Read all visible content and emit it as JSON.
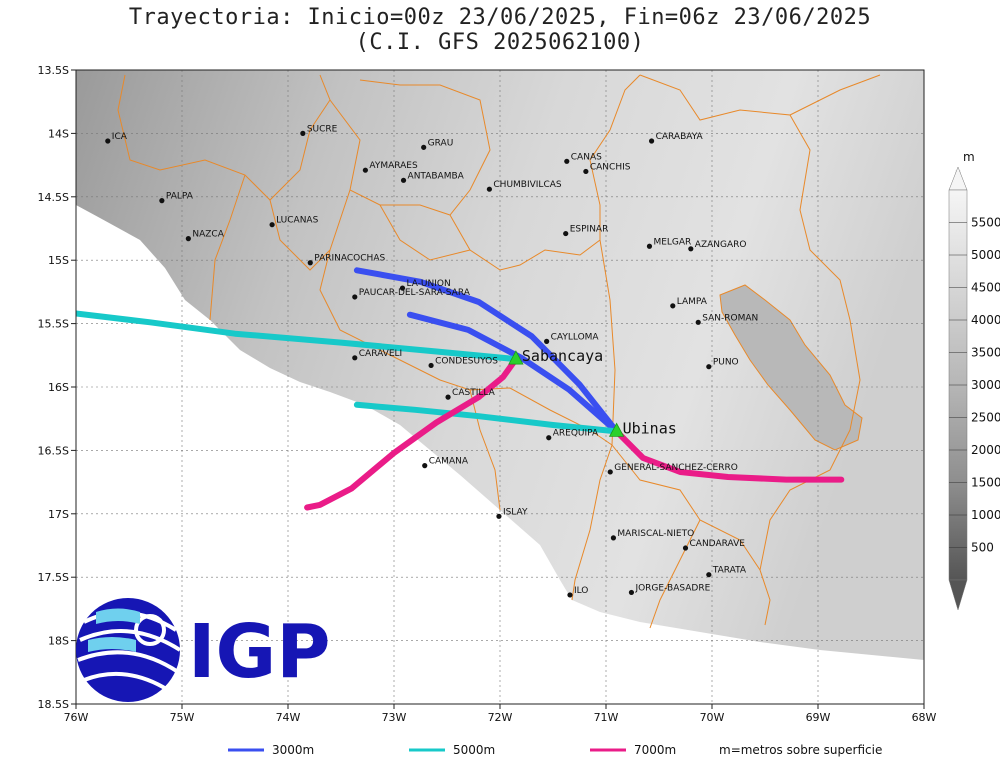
{
  "title": {
    "line1": "Trayectoria: Inicio=00z 23/06/2025, Fin=06z 23/06/2025",
    "line2": "(C.I. GFS 2025062100)"
  },
  "map": {
    "lon_range": [
      -76,
      -68
    ],
    "lat_range": [
      -18.5,
      -13.5
    ],
    "x_ticks": [
      {
        "lon": -76,
        "label": "76W"
      },
      {
        "lon": -75,
        "label": "75W"
      },
      {
        "lon": -74,
        "label": "74W"
      },
      {
        "lon": -73,
        "label": "73W"
      },
      {
        "lon": -72,
        "label": "72W"
      },
      {
        "lon": -71,
        "label": "71W"
      },
      {
        "lon": -70,
        "label": "70W"
      },
      {
        "lon": -69,
        "label": "69W"
      },
      {
        "lon": -68,
        "label": "68W"
      }
    ],
    "y_ticks": [
      {
        "lat": -13.5,
        "label": "13.5S"
      },
      {
        "lat": -14,
        "label": "14S"
      },
      {
        "lat": -14.5,
        "label": "14.5S"
      },
      {
        "lat": -15,
        "label": "15S"
      },
      {
        "lat": -15.5,
        "label": "15.5S"
      },
      {
        "lat": -16,
        "label": "16S"
      },
      {
        "lat": -16.5,
        "label": "16.5S"
      },
      {
        "lat": -17,
        "label": "17S"
      },
      {
        "lat": -17.5,
        "label": "17.5S"
      },
      {
        "lat": -18,
        "label": "18S"
      },
      {
        "lat": -18.5,
        "label": "18.5S"
      }
    ],
    "grid": true,
    "boundary_color": "#e8892a",
    "cities": [
      {
        "name": "ICA",
        "lon": -75.7,
        "lat": -14.06
      },
      {
        "name": "SUCRE",
        "lon": -73.86,
        "lat": -14.0
      },
      {
        "name": "GRAU",
        "lon": -72.72,
        "lat": -14.11
      },
      {
        "name": "CARABAYA",
        "lon": -70.57,
        "lat": -14.06
      },
      {
        "name": "AYMARAES",
        "lon": -73.27,
        "lat": -14.29
      },
      {
        "name": "ANTABAMBA",
        "lon": -72.91,
        "lat": -14.37
      },
      {
        "name": "CANAS",
        "lon": -71.37,
        "lat": -14.22
      },
      {
        "name": "CANCHIS",
        "lon": -71.19,
        "lat": -14.3
      },
      {
        "name": "CHUMBIVILCAS",
        "lon": -72.1,
        "lat": -14.44
      },
      {
        "name": "PALPA",
        "lon": -75.19,
        "lat": -14.53
      },
      {
        "name": "LUCANAS",
        "lon": -74.15,
        "lat": -14.72
      },
      {
        "name": "ESPINAR",
        "lon": -71.38,
        "lat": -14.79
      },
      {
        "name": "NAZCA",
        "lon": -74.94,
        "lat": -14.83
      },
      {
        "name": "MELGAR",
        "lon": -70.59,
        "lat": -14.89
      },
      {
        "name": "AZANGARO",
        "lon": -70.2,
        "lat": -14.91
      },
      {
        "name": "PARINACOCHAS",
        "lon": -73.79,
        "lat": -15.02
      },
      {
        "name": "LA-UNION",
        "lon": -72.92,
        "lat": -15.22
      },
      {
        "name": "PAUCAR-DEL-SARA-SARA",
        "lon": -73.37,
        "lat": -15.29
      },
      {
        "name": "LAMPA",
        "lon": -70.37,
        "lat": -15.36
      },
      {
        "name": "SAN-ROMAN",
        "lon": -70.13,
        "lat": -15.49
      },
      {
        "name": "CAYLLOMA",
        "lon": -71.56,
        "lat": -15.64
      },
      {
        "name": "CARAVELI",
        "lon": -73.37,
        "lat": -15.77
      },
      {
        "name": "CONDESUYOS",
        "lon": -72.65,
        "lat": -15.83
      },
      {
        "name": "PUNO",
        "lon": -70.03,
        "lat": -15.84
      },
      {
        "name": "CASTILLA",
        "lon": -72.49,
        "lat": -16.08
      },
      {
        "name": "AREQUIPA",
        "lon": -71.54,
        "lat": -16.4
      },
      {
        "name": "CAMANA",
        "lon": -72.71,
        "lat": -16.62
      },
      {
        "name": "GENERAL-SANCHEZ-CERRO",
        "lon": -70.96,
        "lat": -16.67
      },
      {
        "name": "ISLAY",
        "lon": -72.01,
        "lat": -17.02
      },
      {
        "name": "MARISCAL-NIETO",
        "lon": -70.93,
        "lat": -17.19
      },
      {
        "name": "CANDARAVE",
        "lon": -70.25,
        "lat": -17.27
      },
      {
        "name": "TARATA",
        "lon": -70.03,
        "lat": -17.48
      },
      {
        "name": "ILO",
        "lon": -71.34,
        "lat": -17.64
      },
      {
        "name": "JORGE-BASADRE",
        "lon": -70.76,
        "lat": -17.62
      }
    ],
    "volcanoes": [
      {
        "name": "Sabancaya",
        "lon": -71.85,
        "lat": -15.78
      },
      {
        "name": "Ubinas",
        "lon": -70.9,
        "lat": -16.35
      }
    ]
  },
  "trajectories": [
    {
      "label": "3000m",
      "color": "#3a4ff0",
      "points": [
        [
          -70.9,
          -16.35
        ],
        [
          -71.25,
          -15.98
        ],
        [
          -71.7,
          -15.6
        ],
        [
          -72.2,
          -15.33
        ],
        [
          -72.75,
          -15.17
        ],
        [
          -73.35,
          -15.08
        ]
      ]
    },
    {
      "label": "3000m",
      "color": "#3a4ff0",
      "points": [
        [
          -70.9,
          -16.35
        ],
        [
          -71.35,
          -16.02
        ],
        [
          -71.8,
          -15.77
        ],
        [
          -72.3,
          -15.55
        ],
        [
          -72.85,
          -15.43
        ]
      ]
    },
    {
      "label": "5000m",
      "color": "#17c9c9",
      "points": [
        [
          -71.85,
          -15.78
        ],
        [
          -72.6,
          -15.72
        ],
        [
          -73.5,
          -15.65
        ],
        [
          -74.5,
          -15.58
        ],
        [
          -75.3,
          -15.49
        ],
        [
          -76.0,
          -15.42
        ]
      ]
    },
    {
      "label": "5000m",
      "color": "#17c9c9",
      "points": [
        [
          -70.9,
          -16.35
        ],
        [
          -71.5,
          -16.3
        ],
        [
          -72.2,
          -16.23
        ],
        [
          -72.8,
          -16.18
        ],
        [
          -73.35,
          -16.14
        ]
      ]
    },
    {
      "label": "7000m",
      "color": "#ea1c88",
      "points": [
        [
          -71.85,
          -15.78
        ],
        [
          -71.97,
          -15.92
        ],
        [
          -72.2,
          -16.08
        ],
        [
          -72.6,
          -16.28
        ],
        [
          -73.0,
          -16.52
        ],
        [
          -73.4,
          -16.8
        ],
        [
          -73.7,
          -16.93
        ],
        [
          -73.82,
          -16.95
        ]
      ]
    },
    {
      "label": "7000m",
      "color": "#ea1c88",
      "points": [
        [
          -70.9,
          -16.35
        ],
        [
          -70.65,
          -16.56
        ],
        [
          -70.3,
          -16.67
        ],
        [
          -69.85,
          -16.71
        ],
        [
          -69.3,
          -16.73
        ],
        [
          -68.78,
          -16.73
        ]
      ]
    }
  ],
  "colorbar": {
    "unit": "m",
    "ticks": [
      500,
      1000,
      1500,
      2000,
      2500,
      3000,
      3500,
      4000,
      4500,
      5000,
      5500
    ],
    "range": [
      0,
      6000
    ]
  },
  "legend": {
    "items": [
      {
        "label": "3000m",
        "color": "#3a4ff0"
      },
      {
        "label": "5000m",
        "color": "#17c9c9"
      },
      {
        "label": "7000m",
        "color": "#ea1c88"
      }
    ],
    "note": "m=metros sobre superficie"
  },
  "logo": {
    "text": "IGP"
  }
}
